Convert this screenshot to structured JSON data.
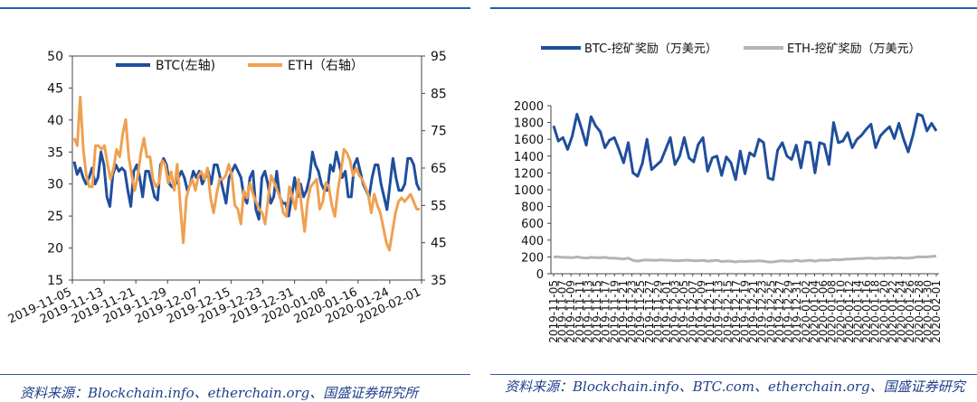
{
  "chart_data": [
    {
      "type": "line",
      "title": "",
      "legend": {
        "placement": "top-center",
        "entries": [
          "BTC(左轴)",
          "ETH（右轴）"
        ]
      },
      "y_left": {
        "lim": [
          15,
          50
        ],
        "ticks": [
          "15",
          "20",
          "25",
          "30",
          "35",
          "40",
          "45",
          "50"
        ]
      },
      "y_right": {
        "lim": [
          35,
          95
        ],
        "ticks": [
          "35",
          "45",
          "55",
          "65",
          "75",
          "85",
          "95"
        ]
      },
      "x_ticks": [
        "2019-11-05",
        "2019-11-13",
        "2019-11-21",
        "2019-11-29",
        "2019-12-07",
        "2019-12-15",
        "2019-12-23",
        "2019-12-31",
        "2020-01-08",
        "2020-01-16",
        "2020-01-24",
        "2020-02-01"
      ],
      "colors": {
        "BTC": "#1f4e9c",
        "ETH": "#f0a050"
      },
      "series": [
        {
          "name": "BTC(左轴)",
          "axis": "left",
          "values": [
            33.5,
            31.5,
            32.5,
            31,
            30,
            31,
            32.5,
            30,
            31,
            35,
            33,
            28,
            26.5,
            31.5,
            33,
            32,
            32.5,
            32,
            29,
            26.5,
            32,
            33,
            31,
            28,
            32,
            32,
            30,
            28,
            27.5,
            33,
            34,
            33,
            30,
            29.5,
            30,
            31,
            32,
            31,
            29,
            30,
            32,
            31,
            32,
            30,
            31,
            32,
            30,
            33,
            33,
            31,
            29,
            27,
            31,
            32,
            33,
            32,
            31,
            28,
            27,
            31,
            32,
            26,
            24.5,
            31,
            32,
            30,
            27,
            28,
            32,
            28,
            27,
            27,
            25,
            28,
            31,
            28,
            30,
            28,
            29,
            31,
            35,
            33,
            32,
            30,
            29,
            29,
            33,
            32,
            35,
            33,
            31,
            32,
            28,
            28,
            33,
            34,
            32,
            30,
            29,
            28,
            31,
            33,
            33,
            30,
            28,
            26,
            30,
            34,
            31,
            29,
            29,
            30,
            34,
            34,
            33,
            30,
            29
          ]
        },
        {
          "name": "ETH（右轴）",
          "axis": "right",
          "values": [
            73,
            71,
            84,
            70,
            63,
            60,
            60,
            71,
            71,
            70,
            71,
            66,
            62,
            65,
            70,
            68,
            74,
            78,
            68,
            63,
            59,
            63,
            69,
            73,
            68,
            68,
            62,
            60,
            61,
            67,
            66,
            61,
            64,
            59,
            66,
            55,
            45,
            57,
            60,
            62,
            59,
            63,
            64,
            62,
            65,
            57,
            53,
            58,
            62,
            62,
            63,
            66,
            63,
            55,
            54,
            50,
            59,
            57,
            61,
            58,
            56,
            54,
            53,
            50,
            57,
            63,
            61,
            59,
            57,
            53,
            52,
            60,
            57,
            54,
            62,
            55,
            48,
            56,
            60,
            61,
            62,
            54,
            56,
            61,
            60,
            55,
            52,
            59,
            64,
            70,
            69,
            67,
            63,
            65,
            63,
            62,
            60,
            58,
            53,
            58,
            55,
            53,
            49,
            45,
            43,
            48,
            53,
            56,
            57,
            56,
            57,
            58,
            56,
            54,
            54
          ]
        }
      ]
    },
    {
      "type": "line",
      "title": "",
      "legend": {
        "placement": "top-center",
        "entries": [
          "BTC-挖矿奖励（万美元）",
          "ETH-挖矿奖励（万美元）"
        ]
      },
      "ylim": [
        0,
        2000
      ],
      "yticks": [
        "0",
        "200",
        "400",
        "600",
        "800",
        "1000",
        "1200",
        "1400",
        "1600",
        "1800",
        "2000"
      ],
      "x_ticks": [
        "2019-11-05",
        "2019-11-07",
        "2019-11-09",
        "2019-11-11",
        "2019-11-13",
        "2019-11-15",
        "2019-11-17",
        "2019-11-19",
        "2019-11-21",
        "2019-11-23",
        "2019-11-25",
        "2019-11-27",
        "2019-11-29",
        "2019-12-01",
        "2019-12-03",
        "2019-12-05",
        "2019-12-07",
        "2019-12-09",
        "2019-12-11",
        "2019-12-13",
        "2019-12-15",
        "2019-12-17",
        "2019-12-19",
        "2019-12-21",
        "2019-12-23",
        "2019-12-25",
        "2019-12-27",
        "2019-12-29",
        "2019-12-31",
        "2020-01-02",
        "2020-01-04",
        "2020-01-06",
        "2020-01-08",
        "2020-01-10",
        "2020-01-12",
        "2020-01-14",
        "2020-01-16",
        "2020-01-18",
        "2020-01-20",
        "2020-01-22",
        "2020-01-24",
        "2020-01-26",
        "2020-01-28",
        "2020-01-30",
        "2020-02-01"
      ],
      "colors": {
        "BTC": "#1f4e9c",
        "ETH": "#b4b4b4"
      },
      "series": [
        {
          "name": "BTC-挖矿奖励（万美元）",
          "values": [
            1760,
            1580,
            1620,
            1480,
            1640,
            1900,
            1720,
            1530,
            1870,
            1760,
            1690,
            1500,
            1590,
            1620,
            1480,
            1320,
            1560,
            1200,
            1160,
            1310,
            1600,
            1240,
            1290,
            1340,
            1480,
            1620,
            1300,
            1400,
            1620,
            1380,
            1330,
            1540,
            1620,
            1220,
            1380,
            1400,
            1170,
            1390,
            1320,
            1120,
            1460,
            1190,
            1440,
            1400,
            1600,
            1560,
            1140,
            1120,
            1470,
            1560,
            1400,
            1360,
            1530,
            1260,
            1570,
            1560,
            1200,
            1560,
            1540,
            1300,
            1800,
            1560,
            1580,
            1680,
            1500,
            1600,
            1650,
            1720,
            1780,
            1500,
            1640,
            1700,
            1750,
            1610,
            1790,
            1600,
            1450,
            1650,
            1900,
            1880,
            1700,
            1790,
            1700
          ]
        },
        {
          "name": "ETH-挖矿奖励（万美元）",
          "values": [
            200,
            200,
            195,
            195,
            190,
            200,
            190,
            185,
            195,
            190,
            190,
            195,
            185,
            185,
            180,
            175,
            185,
            160,
            150,
            160,
            165,
            160,
            160,
            165,
            160,
            160,
            155,
            155,
            160,
            160,
            155,
            155,
            160,
            150,
            155,
            160,
            145,
            150,
            150,
            140,
            150,
            145,
            150,
            150,
            155,
            150,
            140,
            140,
            150,
            155,
            150,
            150,
            160,
            150,
            155,
            160,
            150,
            160,
            160,
            160,
            170,
            165,
            170,
            175,
            175,
            180,
            180,
            185,
            185,
            180,
            185,
            185,
            190,
            185,
            190,
            185,
            185,
            190,
            200,
            200,
            200,
            205,
            210
          ]
        }
      ]
    }
  ],
  "sources": {
    "left": "资料来源：Blockchain.info、etherchain.org、国盛证券研究所",
    "right": "资料来源：Blockchain.info、BTC.com、etherchain.org、国盛证券研究"
  }
}
